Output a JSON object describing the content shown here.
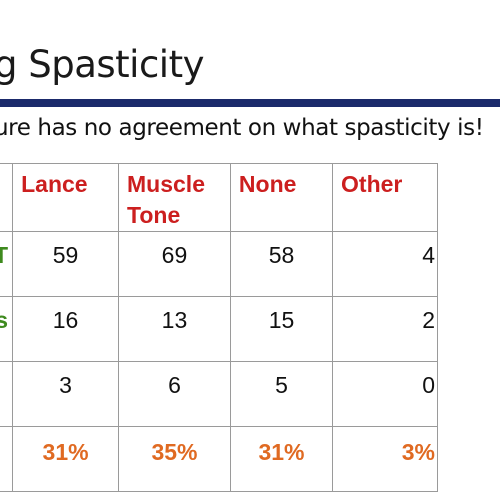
{
  "slide": {
    "title": "g Spasticity",
    "subtitle": "ure has no agreement on what spasticity is!"
  },
  "table": {
    "headers": [
      "Lance",
      "Muscle Tone",
      "None",
      "Other"
    ],
    "header_lines": [
      [
        "Lance"
      ],
      [
        "Muscle",
        "Tone"
      ],
      [
        "None"
      ],
      [
        "Other"
      ]
    ],
    "rows": [
      {
        "label": "CT",
        "values": [
          "59",
          "69",
          "58",
          "4"
        ]
      },
      {
        "label": "ws",
        "values": [
          "16",
          "13",
          "15",
          "2"
        ]
      },
      {
        "label": "",
        "values": [
          "3",
          "6",
          "5",
          "0"
        ]
      },
      {
        "label": "",
        "values": [
          "31%",
          "35%",
          "31%",
          "3%"
        ]
      }
    ]
  },
  "colors": {
    "title_rule": "#1b2a6b",
    "header_text": "#cc1f1f",
    "row_label_text": "#3e8a1e",
    "percent_text": "#e06a22",
    "grid_lines": "#9a9a9a"
  }
}
